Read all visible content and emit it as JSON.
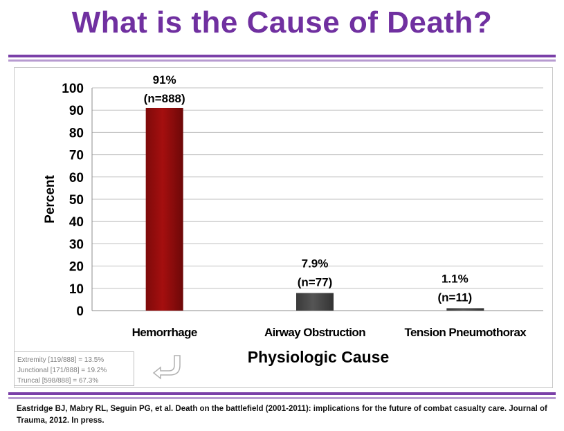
{
  "slide": {
    "title": "What is the Cause of Death?",
    "citation": "Eastridge BJ, Mabry RL, Seguin PG, et al. Death on the battlefield (2001-2011): implications for the future of combat casualty care. Journal of Trauma, 2012. In press."
  },
  "note_box": {
    "lines": [
      "Extremity [119/888] = 13.5%",
      "Junctional [171/888] = 19.2%",
      "Truncal [598/888] = 67.3%"
    ],
    "arrow_icon": "return-arrow-icon"
  },
  "colors": {
    "title": "#7030a0",
    "rule": "#7a3fa8",
    "hemorrhage_bar": "#a50f0f",
    "other_bars": "#555555"
  },
  "chart_data": {
    "type": "bar",
    "categories": [
      "Hemorrhage",
      "Airway Obstruction",
      "Tension Pneumothorax"
    ],
    "values": [
      91,
      7.9,
      1.1
    ],
    "data_labels": [
      [
        "91%",
        "(n=888)"
      ],
      [
        "7.9%",
        "(n=77)"
      ],
      [
        "1.1%",
        "(n=11)"
      ]
    ],
    "ylabel": "Percent",
    "xlabel": "Physiologic  Cause",
    "ylim": [
      0,
      100
    ],
    "yticks": [
      0,
      10,
      20,
      30,
      40,
      50,
      60,
      70,
      80,
      90,
      100
    ],
    "grid": true,
    "legend": "none"
  }
}
